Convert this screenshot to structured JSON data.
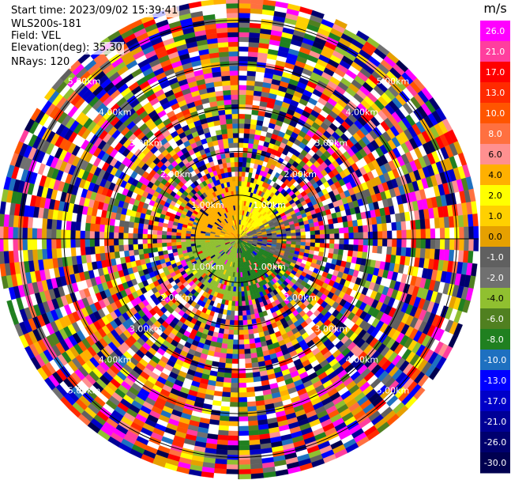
{
  "header": {
    "start_time": "Start time: 2023/09/02 15:39:41",
    "instrument": "WLS200s-181",
    "field": "Field: VEL",
    "elevation": "Elevation(deg): 35.30",
    "nrays": "NRays: 120"
  },
  "chart_data": {
    "type": "heatmap",
    "projection": "polar-ppi",
    "field": "VEL",
    "units": "m/s",
    "n_rays": 120,
    "elevation_deg": 35.3,
    "range_rings_km": [
      1.0,
      2.0,
      3.0,
      4.0,
      5.0
    ],
    "range_ring_labels": [
      "1.00km",
      "2.00km",
      "3.00km",
      "4.00km",
      "5.00km"
    ],
    "range_max_km": 5.5,
    "near_field_pattern": [
      {
        "sector": "north-west",
        "value": 4.0
      },
      {
        "sector": "north-east",
        "value": 2.0
      },
      {
        "sector": "east",
        "value": -1.0
      },
      {
        "sector": "south-west",
        "value": -4.0
      },
      {
        "sector": "south-east",
        "value": -8.0
      }
    ],
    "colorbar": {
      "label": "m/s",
      "ticks": [
        26.0,
        21.0,
        17.0,
        13.0,
        10.0,
        8.0,
        6.0,
        4.0,
        2.0,
        1.0,
        0.0,
        -1.0,
        -2.0,
        -4.0,
        -6.0,
        -8.0,
        -10.0,
        -13.0,
        -17.0,
        -21.0,
        -26.0,
        -30.0
      ],
      "tick_labels": [
        "26.0",
        "21.0",
        "17.0",
        "13.0",
        "10.0",
        "8.0",
        "6.0",
        "4.0",
        "2.0",
        "1.0",
        "0.0",
        "-1.0",
        "-2.0",
        "-4.0",
        "-6.0",
        "-8.0",
        "-10.0",
        "-13.0",
        "-17.0",
        "-21.0",
        "-26.0",
        "-30.0"
      ],
      "colors": [
        "#ff00ff",
        "#ff3e9e",
        "#ff0000",
        "#ff2a00",
        "#ff5500",
        "#ff7040",
        "#ff9090",
        "#ffb000",
        "#ffff00",
        "#ffd000",
        "#e6a000",
        "#606060",
        "#707070",
        "#90c030",
        "#508020",
        "#208020",
        "#1e70c0",
        "#0000ff",
        "#0000c8",
        "#000096",
        "#00006e",
        "#000050"
      ]
    }
  }
}
